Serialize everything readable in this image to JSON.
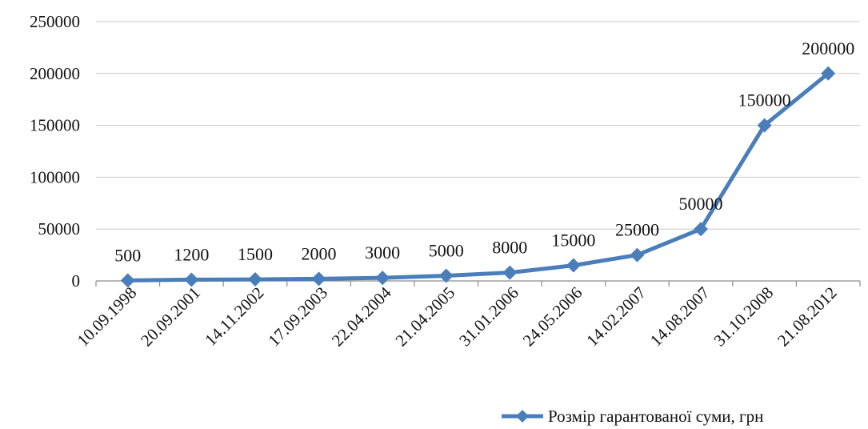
{
  "chart_data": {
    "type": "line",
    "categories": [
      "10.09.1998",
      "20.09.2001",
      "14.11.2002",
      "17.09.2003",
      "22.04.2004",
      "21.04.2005",
      "31.01.2006",
      "24.05.2006",
      "14.02.2007",
      "14.08.2007",
      "31.10.2008",
      "21.08.2012"
    ],
    "series": [
      {
        "name": "Розмір гарантованої суми, грн",
        "values": [
          500,
          1200,
          1500,
          2000,
          3000,
          5000,
          8000,
          15000,
          25000,
          50000,
          150000,
          200000
        ],
        "data_labels": [
          "500",
          "1200",
          "1500",
          "2000",
          "3000",
          "5000",
          "8000",
          "15000",
          "25000",
          "50000",
          "150000",
          "200000"
        ],
        "color": "#4a7ebb",
        "marker": "diamond"
      }
    ],
    "ylim": [
      0,
      250000
    ],
    "yticks": [
      "0",
      "50000",
      "100000",
      "150000",
      "200000",
      "250000"
    ],
    "grid": true,
    "legend_position": "bottom-right"
  }
}
